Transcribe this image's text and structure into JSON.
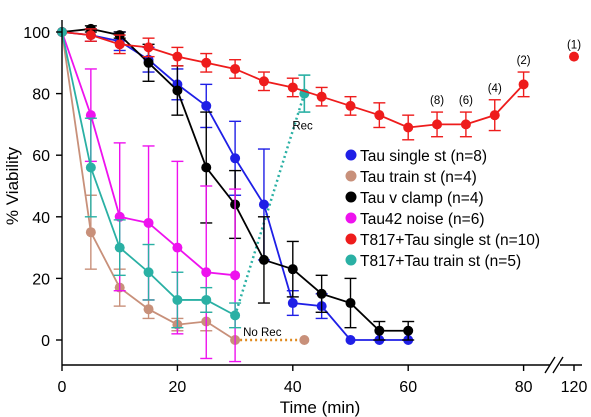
{
  "chart_data": {
    "type": "line",
    "xlabel": "Time (min)",
    "ylabel": "% Viability",
    "ylim": [
      0,
      100
    ],
    "x_ticks": [
      "0",
      "20",
      "40",
      "60",
      "80",
      "120"
    ],
    "y_ticks": [
      "0",
      "20",
      "40",
      "60",
      "80",
      "100"
    ],
    "x_axis_break": "between 90 and 120 min",
    "legend_position": "center-right",
    "series": [
      {
        "name": "Tau single st (n=8)",
        "color": "#1f1fe6",
        "points": [
          {
            "x": 0,
            "y": 100,
            "err": 0
          },
          {
            "x": 5,
            "y": 99,
            "err": 2
          },
          {
            "x": 10,
            "y": 97,
            "err": 3
          },
          {
            "x": 15,
            "y": 91,
            "err": 4
          },
          {
            "x": 20,
            "y": 83,
            "err": 5
          },
          {
            "x": 25,
            "y": 76,
            "err": 7
          },
          {
            "x": 30,
            "y": 59,
            "err": 12
          },
          {
            "x": 35,
            "y": 44,
            "err": 18
          },
          {
            "x": 40,
            "y": 12,
            "err": 4
          },
          {
            "x": 45,
            "y": 11,
            "err": 4
          },
          {
            "x": 50,
            "y": 0,
            "err": 0
          },
          {
            "x": 55,
            "y": 0,
            "err": 0
          },
          {
            "x": 60,
            "y": 0,
            "err": 0
          }
        ]
      },
      {
        "name": "Tau train st (n=4)",
        "color": "#c8907a",
        "points": [
          {
            "x": 0,
            "y": 100,
            "err": 0
          },
          {
            "x": 5,
            "y": 35,
            "err": 12
          },
          {
            "x": 10,
            "y": 17,
            "err": 6
          },
          {
            "x": 15,
            "y": 10,
            "err": 3
          },
          {
            "x": 20,
            "y": 5,
            "err": 2
          },
          {
            "x": 25,
            "y": 6,
            "err": 3
          },
          {
            "x": 30,
            "y": 0,
            "err": 0
          }
        ]
      },
      {
        "name": "Tau v clamp (n=4)",
        "color": "#000000",
        "points": [
          {
            "x": 0,
            "y": 100,
            "err": 0
          },
          {
            "x": 5,
            "y": 101,
            "err": 1
          },
          {
            "x": 10,
            "y": 99,
            "err": 1
          },
          {
            "x": 15,
            "y": 90,
            "err": 6
          },
          {
            "x": 20,
            "y": 81,
            "err": 8
          },
          {
            "x": 25,
            "y": 56,
            "err": 18
          },
          {
            "x": 30,
            "y": 44,
            "err": 11
          },
          {
            "x": 35,
            "y": 26,
            "err": 14
          },
          {
            "x": 40,
            "y": 23,
            "err": 9
          },
          {
            "x": 45,
            "y": 15,
            "err": 6
          },
          {
            "x": 50,
            "y": 12,
            "err": 8
          },
          {
            "x": 55,
            "y": 3,
            "err": 3
          },
          {
            "x": 60,
            "y": 3,
            "err": 3
          }
        ]
      },
      {
        "name": "Tau42 noise (n=6)",
        "color": "#ee12ee",
        "points": [
          {
            "x": 0,
            "y": 100,
            "err": 0
          },
          {
            "x": 5,
            "y": 73,
            "err": 15
          },
          {
            "x": 10,
            "y": 40,
            "err": 24
          },
          {
            "x": 15,
            "y": 38,
            "err": 25
          },
          {
            "x": 20,
            "y": 30,
            "err": 28
          },
          {
            "x": 25,
            "y": 22,
            "err": 28
          },
          {
            "x": 30,
            "y": 21,
            "err": 28
          }
        ]
      },
      {
        "name": "T817+Tau single st (n=10)",
        "color": "#ee1c1c",
        "points": [
          {
            "x": 0,
            "y": 100,
            "err": 0
          },
          {
            "x": 5,
            "y": 99,
            "err": 2
          },
          {
            "x": 10,
            "y": 96,
            "err": 3
          },
          {
            "x": 15,
            "y": 95,
            "err": 3
          },
          {
            "x": 20,
            "y": 92,
            "err": 3
          },
          {
            "x": 25,
            "y": 90,
            "err": 3
          },
          {
            "x": 30,
            "y": 88,
            "err": 3
          },
          {
            "x": 35,
            "y": 84,
            "err": 3
          },
          {
            "x": 40,
            "y": 82,
            "err": 3
          },
          {
            "x": 45,
            "y": 79,
            "err": 3
          },
          {
            "x": 50,
            "y": 76,
            "err": 3
          },
          {
            "x": 55,
            "y": 73,
            "err": 4
          },
          {
            "x": 60,
            "y": 69,
            "err": 4
          },
          {
            "x": 65,
            "y": 70,
            "err": 4
          },
          {
            "x": 70,
            "y": 70,
            "err": 4
          },
          {
            "x": 75,
            "y": 73,
            "err": 5
          },
          {
            "x": 80,
            "y": 83,
            "err": 4
          },
          {
            "x": 120,
            "y": 92,
            "err": 0
          }
        ],
        "annotations": [
          {
            "x": 65,
            "text": "(8)"
          },
          {
            "x": 70,
            "text": "(6)"
          },
          {
            "x": 75,
            "text": "(4)"
          },
          {
            "x": 80,
            "text": "(2)"
          },
          {
            "x": 120,
            "text": "(1)"
          }
        ]
      },
      {
        "name": "T817+Tau train st (n=5)",
        "color": "#2ab0a4",
        "points": [
          {
            "x": 0,
            "y": 100,
            "err": 0
          },
          {
            "x": 5,
            "y": 56,
            "err": 16
          },
          {
            "x": 10,
            "y": 30,
            "err": 9
          },
          {
            "x": 15,
            "y": 22,
            "err": 9
          },
          {
            "x": 20,
            "y": 13,
            "err": 9
          },
          {
            "x": 25,
            "y": 13,
            "err": 4
          },
          {
            "x": 30,
            "y": 8,
            "err": 4
          }
        ]
      }
    ],
    "recovery_lines": [
      {
        "label": "Rec",
        "color": "#2ab0a4",
        "from": {
          "x": 30,
          "y": 8
        },
        "to": {
          "x": 42,
          "y": 80
        },
        "err": 6
      },
      {
        "label": "No Rec",
        "color": "#e08a1e",
        "from": {
          "x": 30,
          "y": 0
        },
        "to": {
          "x": 42,
          "y": 0
        }
      }
    ]
  }
}
